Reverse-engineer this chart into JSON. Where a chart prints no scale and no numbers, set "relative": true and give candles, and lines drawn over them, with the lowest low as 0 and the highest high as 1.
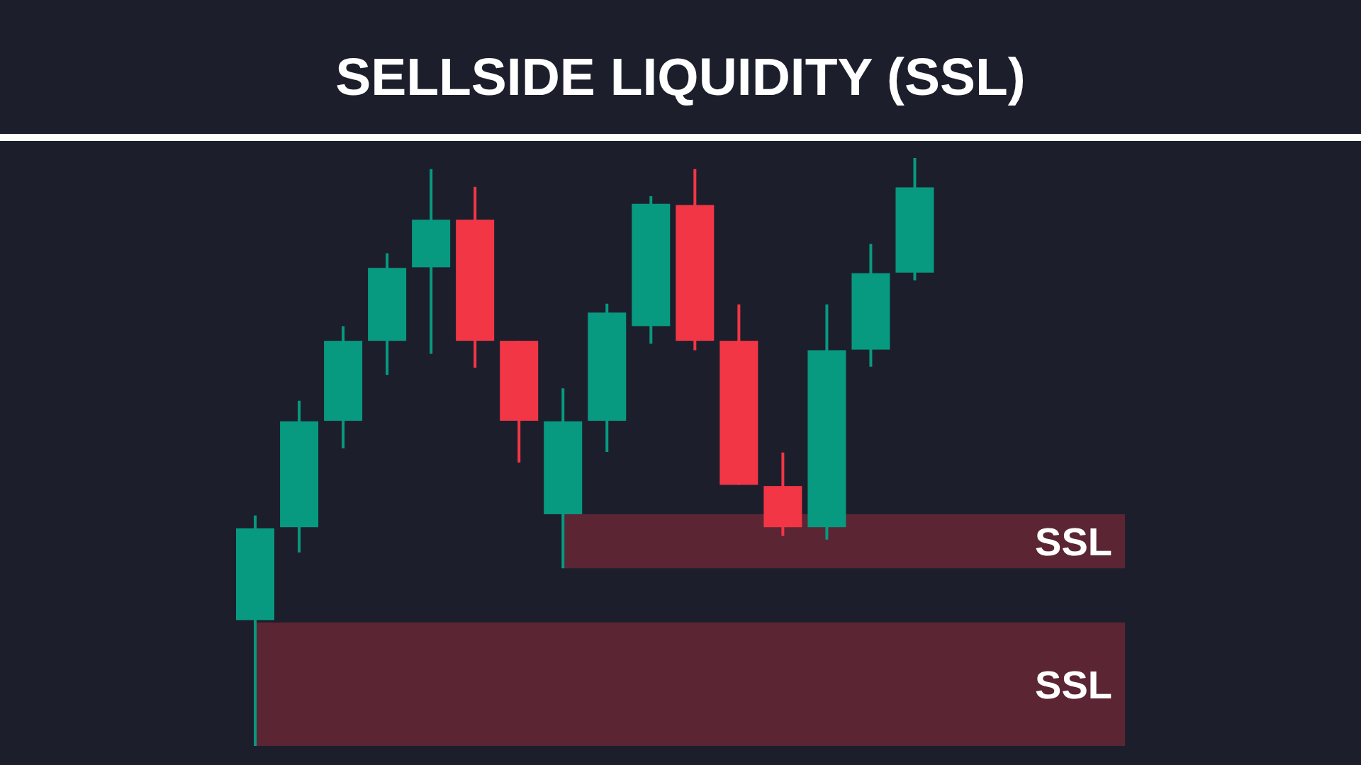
{
  "chart_data": {
    "type": "candlestick",
    "title": "SELLSIDE LIQUIDITY (SSL)",
    "categories": [
      null,
      null,
      null,
      null,
      null,
      null,
      null,
      null,
      null,
      null,
      null,
      null,
      null,
      null,
      null,
      null
    ],
    "ohlc": [
      [
        0.214,
        0.392,
        0,
        0.37
      ],
      [
        0.372,
        0.587,
        0.329,
        0.552
      ],
      [
        0.553,
        0.714,
        0.506,
        0.689
      ],
      [
        0.689,
        0.838,
        0.631,
        0.813
      ],
      [
        0.814,
        0.981,
        0.667,
        0.895
      ],
      [
        0.895,
        0.951,
        0.643,
        0.689
      ],
      [
        0.689,
        0.689,
        0.482,
        0.553
      ],
      [
        0.394,
        0.608,
        0.302,
        0.552
      ],
      [
        0.553,
        0.752,
        0.5,
        0.737
      ],
      [
        0.714,
        0.935,
        0.684,
        0.922
      ],
      [
        0.92,
        0.981,
        0.673,
        0.689
      ],
      [
        0.689,
        0.751,
        0.444,
        0.444
      ],
      [
        0.442,
        0.499,
        0.357,
        0.372
      ],
      [
        0.372,
        0.751,
        0.351,
        0.673
      ],
      [
        0.674,
        0.854,
        0.645,
        0.804
      ],
      [
        0.805,
        1,
        0.792,
        0.95
      ]
    ],
    "colors": [
      "#089981",
      "#089981",
      "#089981",
      "#089981",
      "#089981",
      "#f23645",
      "#f23645",
      "#089981",
      "#089981",
      "#089981",
      "#f23645",
      "#f23645",
      "#f23645",
      "#089981",
      "#089981",
      "#089981"
    ],
    "relative": true,
    "tick_labels": false,
    "bands": [
      {
        "axis": "y",
        "from": 0.302,
        "to": 0.394,
        "label": "SSL",
        "color": "#5b2533"
      },
      {
        "axis": "y",
        "from": 0,
        "to": 0.21,
        "label": "SSL",
        "color": "#5b2533"
      }
    ]
  }
}
